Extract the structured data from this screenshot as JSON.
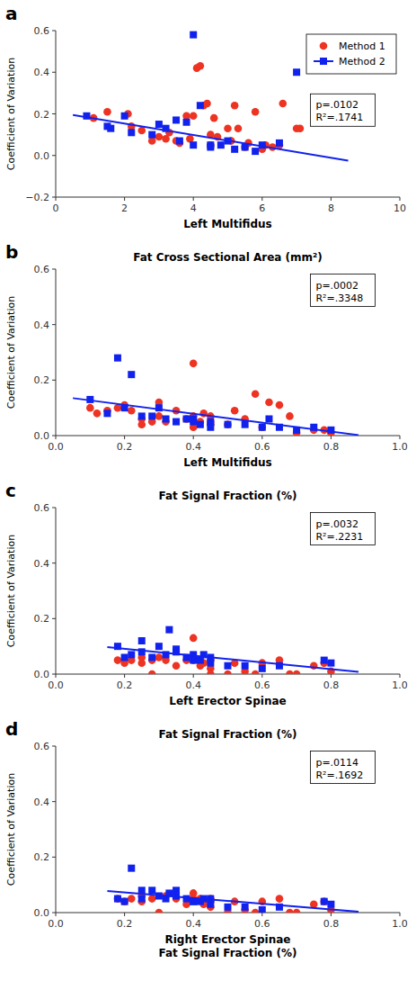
{
  "chart_data": [
    {
      "type": "scatter",
      "panel_label": "a",
      "xlabel": "Left Multifidus",
      "ylabel": "Coefficient of Variation",
      "xlim": [
        0,
        10
      ],
      "ylim": [
        -0.2,
        0.6
      ],
      "xticks": [
        0,
        2,
        4,
        6,
        8,
        10
      ],
      "yticks": [
        {
          "value": -0.2,
          "label": "−0.2"
        },
        {
          "value": 0,
          "label": "0.0"
        },
        0.2,
        0.4,
        0.6
      ],
      "annotations": [
        "p=.0102",
        "R²=.1741"
      ],
      "legend": "upper right",
      "grid": false,
      "series": [
        {
          "name": "Method 1",
          "color": "#EE3322",
          "marker": "circle",
          "x": [
            1.1,
            1.5,
            2.1,
            2.2,
            2.5,
            2.8,
            3.0,
            3.2,
            3.3,
            3.5,
            3.6,
            3.8,
            3.9,
            4.0,
            4.1,
            4.2,
            4.3,
            4.4,
            4.5,
            4.5,
            4.6,
            4.7,
            5.0,
            5.1,
            5.2,
            5.3,
            5.5,
            5.6,
            5.8,
            6.0,
            6.1,
            6.3,
            6.5,
            6.6,
            7.0,
            7.1
          ],
          "values": [
            0.18,
            0.21,
            0.2,
            0.14,
            0.12,
            0.07,
            0.09,
            0.08,
            0.11,
            0.07,
            0.06,
            0.19,
            0.08,
            0.19,
            0.42,
            0.43,
            0.24,
            0.25,
            0.1,
            0.05,
            0.18,
            0.09,
            0.13,
            0.07,
            0.24,
            0.13,
            0.04,
            0.06,
            0.21,
            0.03,
            0.05,
            0.04,
            0.05,
            0.25,
            0.13,
            0.13
          ]
        },
        {
          "name": "Method 2",
          "color": "#1122EE",
          "marker": "square",
          "x": [
            0.9,
            1.5,
            1.6,
            2.0,
            2.2,
            2.8,
            3.0,
            3.2,
            3.5,
            3.6,
            3.8,
            4.0,
            4.0,
            4.2,
            4.5,
            4.5,
            4.8,
            5.0,
            5.2,
            5.5,
            5.8,
            6.0,
            6.5,
            7.0
          ],
          "values": [
            0.19,
            0.14,
            0.13,
            0.19,
            0.11,
            0.1,
            0.15,
            0.13,
            0.17,
            0.07,
            0.16,
            0.58,
            0.05,
            0.24,
            0.04,
            0.05,
            0.05,
            0.07,
            0.03,
            0.04,
            0.02,
            0.05,
            0.06,
            0.4
          ]
        },
        {
          "type": "line",
          "color": "#1122EE",
          "line_style": "solid",
          "x": [
            0.5,
            8.5
          ],
          "values": [
            0.195,
            -0.025
          ]
        }
      ]
    },
    {
      "type": "scatter",
      "panel_label": "b",
      "title": "Fat Cross Sectional Area (mm²)",
      "xlabel": "Left Multifidus",
      "ylabel": "Coefficient of Variation",
      "xlim": [
        0.0,
        1.0
      ],
      "ylim": [
        0,
        0.6
      ],
      "xticks": [
        {
          "value": 0,
          "label": "0.0"
        },
        0.2,
        0.4,
        0.6,
        0.8,
        {
          "value": 1,
          "label": "1.0"
        }
      ],
      "yticks": [
        {
          "value": 0,
          "label": "0.0"
        },
        0.2,
        0.4,
        0.6
      ],
      "annotations": [
        "p=.0002",
        "R²=.3348"
      ],
      "grid": false,
      "series": [
        {
          "color": "#EE3322",
          "marker": "circle",
          "x": [
            0.1,
            0.12,
            0.15,
            0.18,
            0.2,
            0.22,
            0.25,
            0.25,
            0.28,
            0.3,
            0.3,
            0.32,
            0.35,
            0.38,
            0.4,
            0.4,
            0.4,
            0.42,
            0.43,
            0.45,
            0.45,
            0.45,
            0.5,
            0.52,
            0.55,
            0.58,
            0.6,
            0.62,
            0.65,
            0.68,
            0.7,
            0.75,
            0.78,
            0.8
          ],
          "values": [
            0.1,
            0.08,
            0.09,
            0.1,
            0.11,
            0.09,
            0.06,
            0.04,
            0.05,
            0.12,
            0.07,
            0.05,
            0.09,
            0.06,
            0.03,
            0.07,
            0.26,
            0.05,
            0.08,
            0.05,
            0.07,
            0.04,
            0.04,
            0.09,
            0.06,
            0.15,
            0.03,
            0.12,
            0.11,
            0.07,
            0.01,
            0.02,
            0.02,
            0.01
          ]
        },
        {
          "color": "#1122EE",
          "marker": "square",
          "x": [
            0.1,
            0.15,
            0.18,
            0.2,
            0.22,
            0.25,
            0.28,
            0.3,
            0.32,
            0.35,
            0.38,
            0.4,
            0.4,
            0.42,
            0.45,
            0.45,
            0.5,
            0.55,
            0.6,
            0.62,
            0.65,
            0.7,
            0.75,
            0.8
          ],
          "values": [
            0.13,
            0.08,
            0.28,
            0.1,
            0.22,
            0.07,
            0.07,
            0.1,
            0.06,
            0.05,
            0.06,
            0.05,
            0.06,
            0.04,
            0.05,
            0.03,
            0.04,
            0.04,
            0.03,
            0.06,
            0.03,
            0.02,
            0.03,
            0.02
          ]
        },
        {
          "type": "line",
          "color": "#1122EE",
          "line_style": "solid",
          "x": [
            0.05,
            0.88
          ],
          "values": [
            0.135,
            0.002
          ]
        }
      ]
    },
    {
      "type": "scatter",
      "panel_label": "c",
      "title": "Fat Signal Fraction (%)",
      "xlabel": "Left Erector Spinae",
      "ylabel": "Coefficient of Variation",
      "xlim": [
        0.0,
        1.0
      ],
      "ylim": [
        0,
        0.6
      ],
      "xticks": [
        {
          "value": 0,
          "label": "0.0"
        },
        0.2,
        0.4,
        0.6,
        0.8,
        {
          "value": 1,
          "label": "1.0"
        }
      ],
      "yticks": [
        {
          "value": 0,
          "label": "0.0"
        },
        0.2,
        0.4,
        0.6
      ],
      "annotations": [
        "p=.0032",
        "R²=.2231"
      ],
      "grid": false,
      "series": [
        {
          "color": "#EE3322",
          "marker": "circle",
          "x": [
            0.18,
            0.2,
            0.22,
            0.25,
            0.25,
            0.28,
            0.28,
            0.3,
            0.32,
            0.35,
            0.38,
            0.4,
            0.4,
            0.42,
            0.43,
            0.45,
            0.45,
            0.45,
            0.5,
            0.52,
            0.55,
            0.58,
            0.6,
            0.65,
            0.68,
            0.7,
            0.75,
            0.78,
            0.8
          ],
          "values": [
            0.05,
            0.04,
            0.05,
            0.06,
            0.04,
            0.05,
            0.0,
            0.06,
            0.05,
            0.03,
            0.05,
            0.13,
            0.05,
            0.03,
            0.04,
            0.05,
            0.02,
            0.0,
            0.0,
            0.04,
            0.01,
            0.0,
            0.04,
            0.05,
            0.0,
            0.0,
            0.03,
            0.04,
            0.01
          ]
        },
        {
          "color": "#1122EE",
          "marker": "square",
          "x": [
            0.18,
            0.2,
            0.22,
            0.25,
            0.25,
            0.28,
            0.3,
            0.32,
            0.33,
            0.35,
            0.35,
            0.38,
            0.4,
            0.4,
            0.42,
            0.43,
            0.45,
            0.45,
            0.5,
            0.55,
            0.6,
            0.65,
            0.78,
            0.8
          ],
          "values": [
            0.1,
            0.06,
            0.07,
            0.12,
            0.08,
            0.06,
            0.1,
            0.07,
            0.16,
            0.08,
            0.09,
            0.06,
            0.07,
            0.05,
            0.05,
            0.07,
            0.04,
            0.06,
            0.03,
            0.03,
            0.02,
            0.03,
            0.05,
            0.04
          ]
        },
        {
          "type": "line",
          "color": "#1122EE",
          "line_style": "solid",
          "x": [
            0.15,
            0.88
          ],
          "values": [
            0.097,
            0.008
          ]
        }
      ]
    },
    {
      "type": "scatter",
      "panel_label": "d",
      "title": "Fat Signal Fraction (%)",
      "xlabel": "Right Erector Spinae\nFat Signal Fraction (%)",
      "ylabel": "Coefficient of Variation",
      "xlim": [
        0.0,
        1.0
      ],
      "ylim": [
        0,
        0.6
      ],
      "xticks": [
        {
          "value": 0,
          "label": "0.0"
        },
        0.2,
        0.4,
        0.6,
        0.8,
        {
          "value": 1,
          "label": "1.0"
        }
      ],
      "yticks": [
        {
          "value": 0,
          "label": "0.0"
        },
        0.2,
        0.4,
        0.6
      ],
      "annotations": [
        "p=.0114",
        "R²=.1692"
      ],
      "grid": false,
      "series": [
        {
          "color": "#EE3322",
          "marker": "circle",
          "x": [
            0.18,
            0.2,
            0.22,
            0.25,
            0.25,
            0.28,
            0.3,
            0.32,
            0.35,
            0.38,
            0.4,
            0.4,
            0.42,
            0.43,
            0.45,
            0.45,
            0.45,
            0.5,
            0.52,
            0.55,
            0.58,
            0.6,
            0.65,
            0.68,
            0.7,
            0.75,
            0.78,
            0.8
          ],
          "values": [
            0.05,
            0.04,
            0.05,
            0.06,
            0.04,
            0.05,
            0.0,
            0.06,
            0.05,
            0.03,
            0.05,
            0.07,
            0.05,
            0.03,
            0.04,
            0.05,
            0.02,
            0.0,
            0.04,
            0.01,
            0.0,
            0.04,
            0.05,
            0.0,
            0.0,
            0.03,
            0.04,
            0.01
          ]
        },
        {
          "color": "#1122EE",
          "marker": "square",
          "x": [
            0.18,
            0.2,
            0.22,
            0.25,
            0.25,
            0.28,
            0.3,
            0.32,
            0.33,
            0.35,
            0.35,
            0.38,
            0.4,
            0.4,
            0.42,
            0.43,
            0.45,
            0.45,
            0.5,
            0.55,
            0.6,
            0.65,
            0.78,
            0.8
          ],
          "values": [
            0.05,
            0.04,
            0.16,
            0.08,
            0.05,
            0.08,
            0.06,
            0.05,
            0.07,
            0.06,
            0.08,
            0.05,
            0.04,
            0.04,
            0.04,
            0.05,
            0.03,
            0.05,
            0.02,
            0.02,
            0.01,
            0.02,
            0.04,
            0.03
          ]
        },
        {
          "type": "line",
          "color": "#1122EE",
          "line_style": "solid",
          "x": [
            0.15,
            0.88
          ],
          "values": [
            0.078,
            0.003
          ]
        }
      ]
    }
  ]
}
